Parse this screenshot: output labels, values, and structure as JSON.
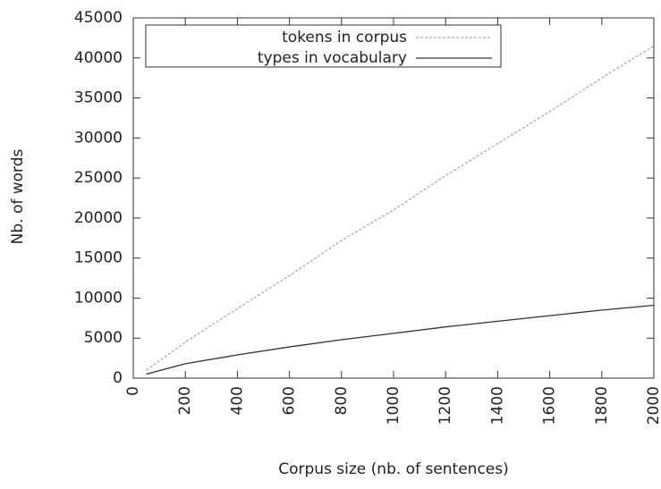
{
  "chart_data": {
    "type": "line",
    "xlabel": "Corpus size (nb. of sentences)",
    "ylabel": "Nb. of words",
    "x": [
      50,
      200,
      400,
      600,
      800,
      1000,
      1200,
      1400,
      1600,
      1800,
      2000
    ],
    "series": [
      {
        "name": "tokens in corpus",
        "color": "#aaaaaa",
        "dash": true,
        "values": [
          1000,
          4500,
          8700,
          12800,
          17200,
          21000,
          25300,
          29300,
          33300,
          37500,
          41500
        ]
      },
      {
        "name": "types in vocabulary",
        "color": "#333333",
        "dash": false,
        "values": [
          500,
          1800,
          2900,
          3900,
          4800,
          5600,
          6400,
          7100,
          7800,
          8500,
          9100
        ]
      }
    ],
    "xlim": [
      0,
      2000
    ],
    "xticks": [
      0,
      200,
      400,
      600,
      800,
      1000,
      1200,
      1400,
      1600,
      1800,
      2000
    ],
    "ylim": [
      0,
      45000
    ],
    "yticks": [
      0,
      5000,
      10000,
      15000,
      20000,
      25000,
      30000,
      35000,
      40000,
      45000
    ],
    "legend": "top-left"
  }
}
